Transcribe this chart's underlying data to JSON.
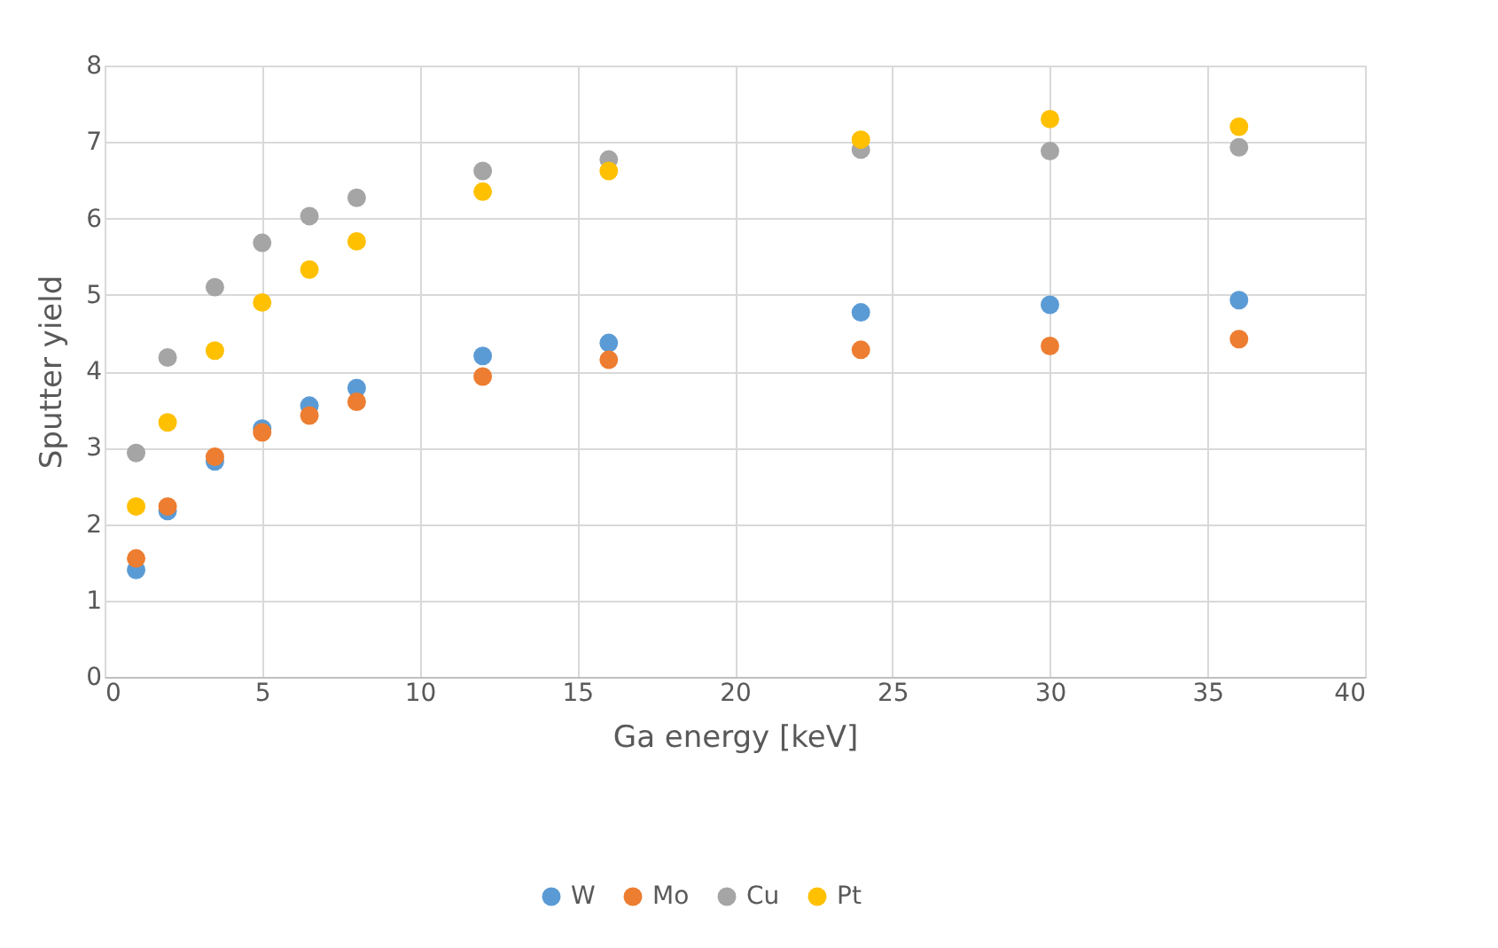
{
  "chart_data": {
    "type": "scatter",
    "xlabel": "Ga energy [keV]",
    "ylabel": "Sputter yield",
    "x": [
      1,
      2,
      3.5,
      5,
      6.5,
      8,
      12,
      16,
      24,
      30,
      36
    ],
    "series": [
      {
        "name": "W",
        "color": "#5b9bd5",
        "values": [
          1.4,
          2.17,
          2.82,
          3.25,
          3.55,
          3.78,
          4.2,
          4.37,
          4.77,
          4.87,
          4.93
        ]
      },
      {
        "name": "Mo",
        "color": "#ed7d31",
        "values": [
          1.55,
          2.23,
          2.88,
          3.2,
          3.42,
          3.6,
          3.93,
          4.15,
          4.28,
          4.33,
          4.42
        ]
      },
      {
        "name": "Cu",
        "color": "#a5a5a5",
        "values": [
          2.93,
          4.18,
          5.1,
          5.68,
          6.03,
          6.27,
          6.62,
          6.77,
          6.9,
          6.88,
          6.93
        ]
      },
      {
        "name": "Pt",
        "color": "#ffc000",
        "values": [
          2.23,
          3.33,
          4.27,
          4.9,
          5.33,
          5.7,
          6.35,
          6.62,
          7.03,
          7.3,
          7.2
        ]
      }
    ],
    "xlim": [
      0,
      40
    ],
    "xticks": [
      0,
      5,
      10,
      15,
      20,
      25,
      30,
      35,
      40
    ],
    "ylim": [
      0,
      8
    ],
    "yticks": [
      0,
      1,
      2,
      3,
      4,
      5,
      6,
      7,
      8
    ],
    "grid": true,
    "legend": "bottom",
    "marker": "circle"
  }
}
